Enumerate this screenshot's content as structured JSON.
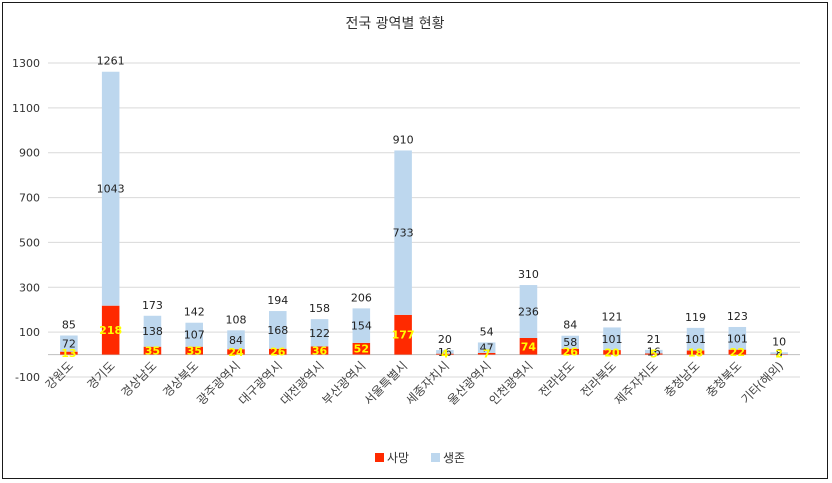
{
  "chart_data": {
    "type": "bar",
    "stacked": true,
    "title": "전국 광역별 현황",
    "categories": [
      "강원도",
      "경기도",
      "경상남도",
      "경상북도",
      "광주광역시",
      "대구광역시",
      "대전광역시",
      "부산광역시",
      "서울특별시",
      "세종자치시",
      "울산광역시",
      "인천광역시",
      "전라남도",
      "전라북도",
      "제주자치도",
      "충청남도",
      "충청북도",
      "기타(해외)"
    ],
    "series": [
      {
        "name": "사망",
        "color": "#ff2a00",
        "values": [
          13,
          218,
          35,
          35,
          24,
          26,
          36,
          52,
          177,
          4,
          7,
          74,
          26,
          20,
          5,
          18,
          22,
          2
        ]
      },
      {
        "name": "생존",
        "color": "#bdd7ee",
        "values": [
          72,
          1043,
          138,
          107,
          84,
          168,
          122,
          154,
          733,
          16,
          47,
          236,
          58,
          101,
          16,
          101,
          101,
          8
        ]
      }
    ],
    "totals": [
      85,
      1261,
      173,
      142,
      108,
      194,
      158,
      206,
      910,
      20,
      54,
      310,
      84,
      121,
      21,
      119,
      123,
      10
    ],
    "ylim": [
      -100,
      1300
    ],
    "yticks": [
      -100,
      100,
      300,
      500,
      700,
      900,
      1100,
      1300
    ],
    "grid": true,
    "legend_position": "bottom"
  }
}
